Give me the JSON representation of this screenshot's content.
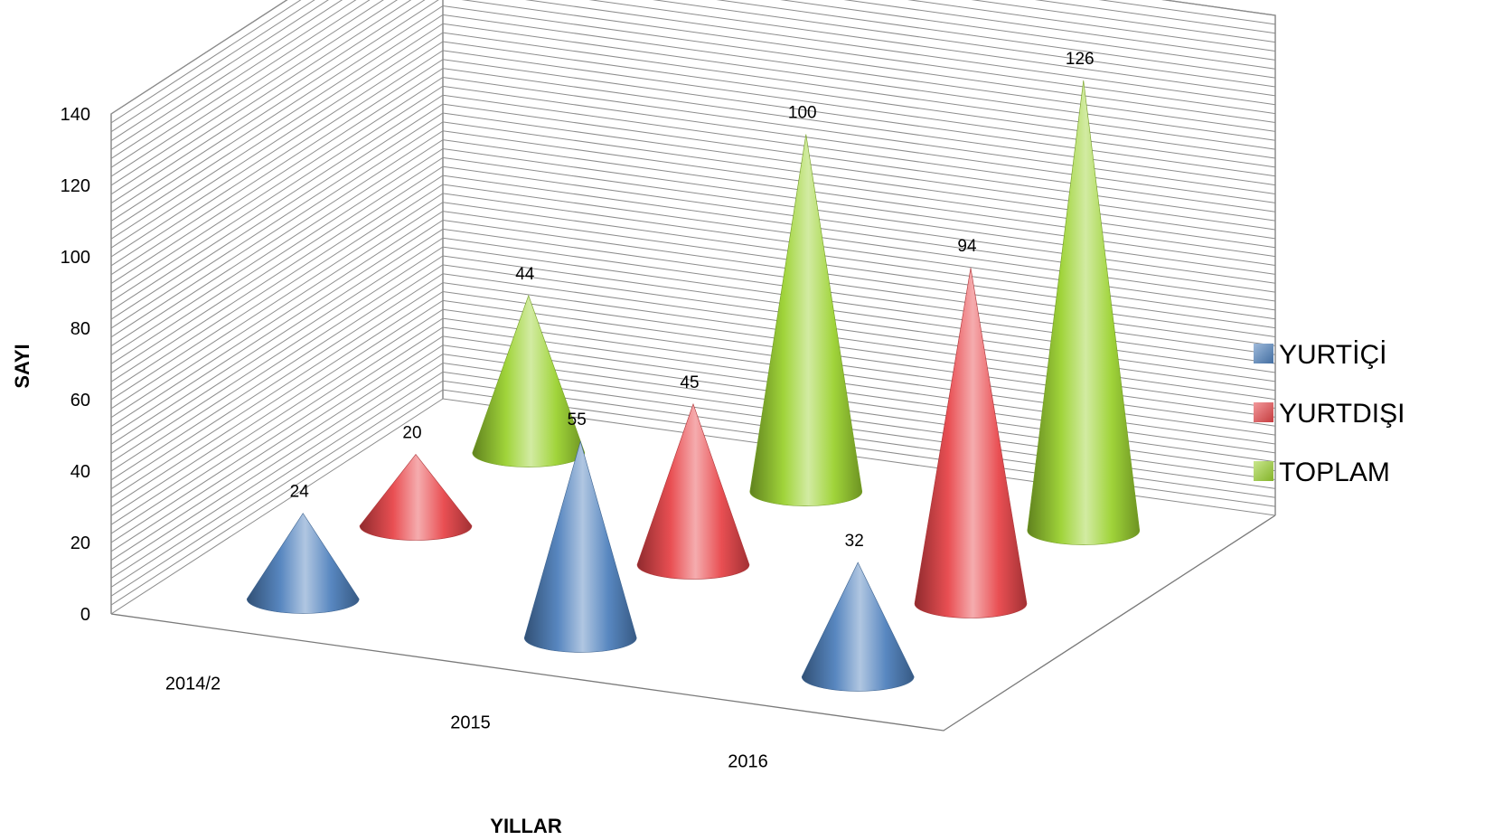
{
  "chart_data": {
    "type": "bar",
    "subtype": "3d-cone",
    "categories": [
      "2014/2",
      "2015",
      "2016"
    ],
    "series": [
      {
        "name": "YURTİÇİ",
        "values": [
          24,
          55,
          32
        ],
        "color": "#4f81bd"
      },
      {
        "name": "YURTDIŞI",
        "values": [
          20,
          45,
          94
        ],
        "color": "#e8464a"
      },
      {
        "name": "TOPLAM",
        "values": [
          44,
          100,
          126
        ],
        "color": "#9bd230"
      }
    ],
    "xlabel": "YILLAR",
    "ylabel": "SAYI",
    "ylim": [
      0,
      140
    ],
    "yticks": [
      0,
      20,
      40,
      60,
      80,
      100,
      120,
      140
    ],
    "grid": true,
    "legend": "right"
  }
}
